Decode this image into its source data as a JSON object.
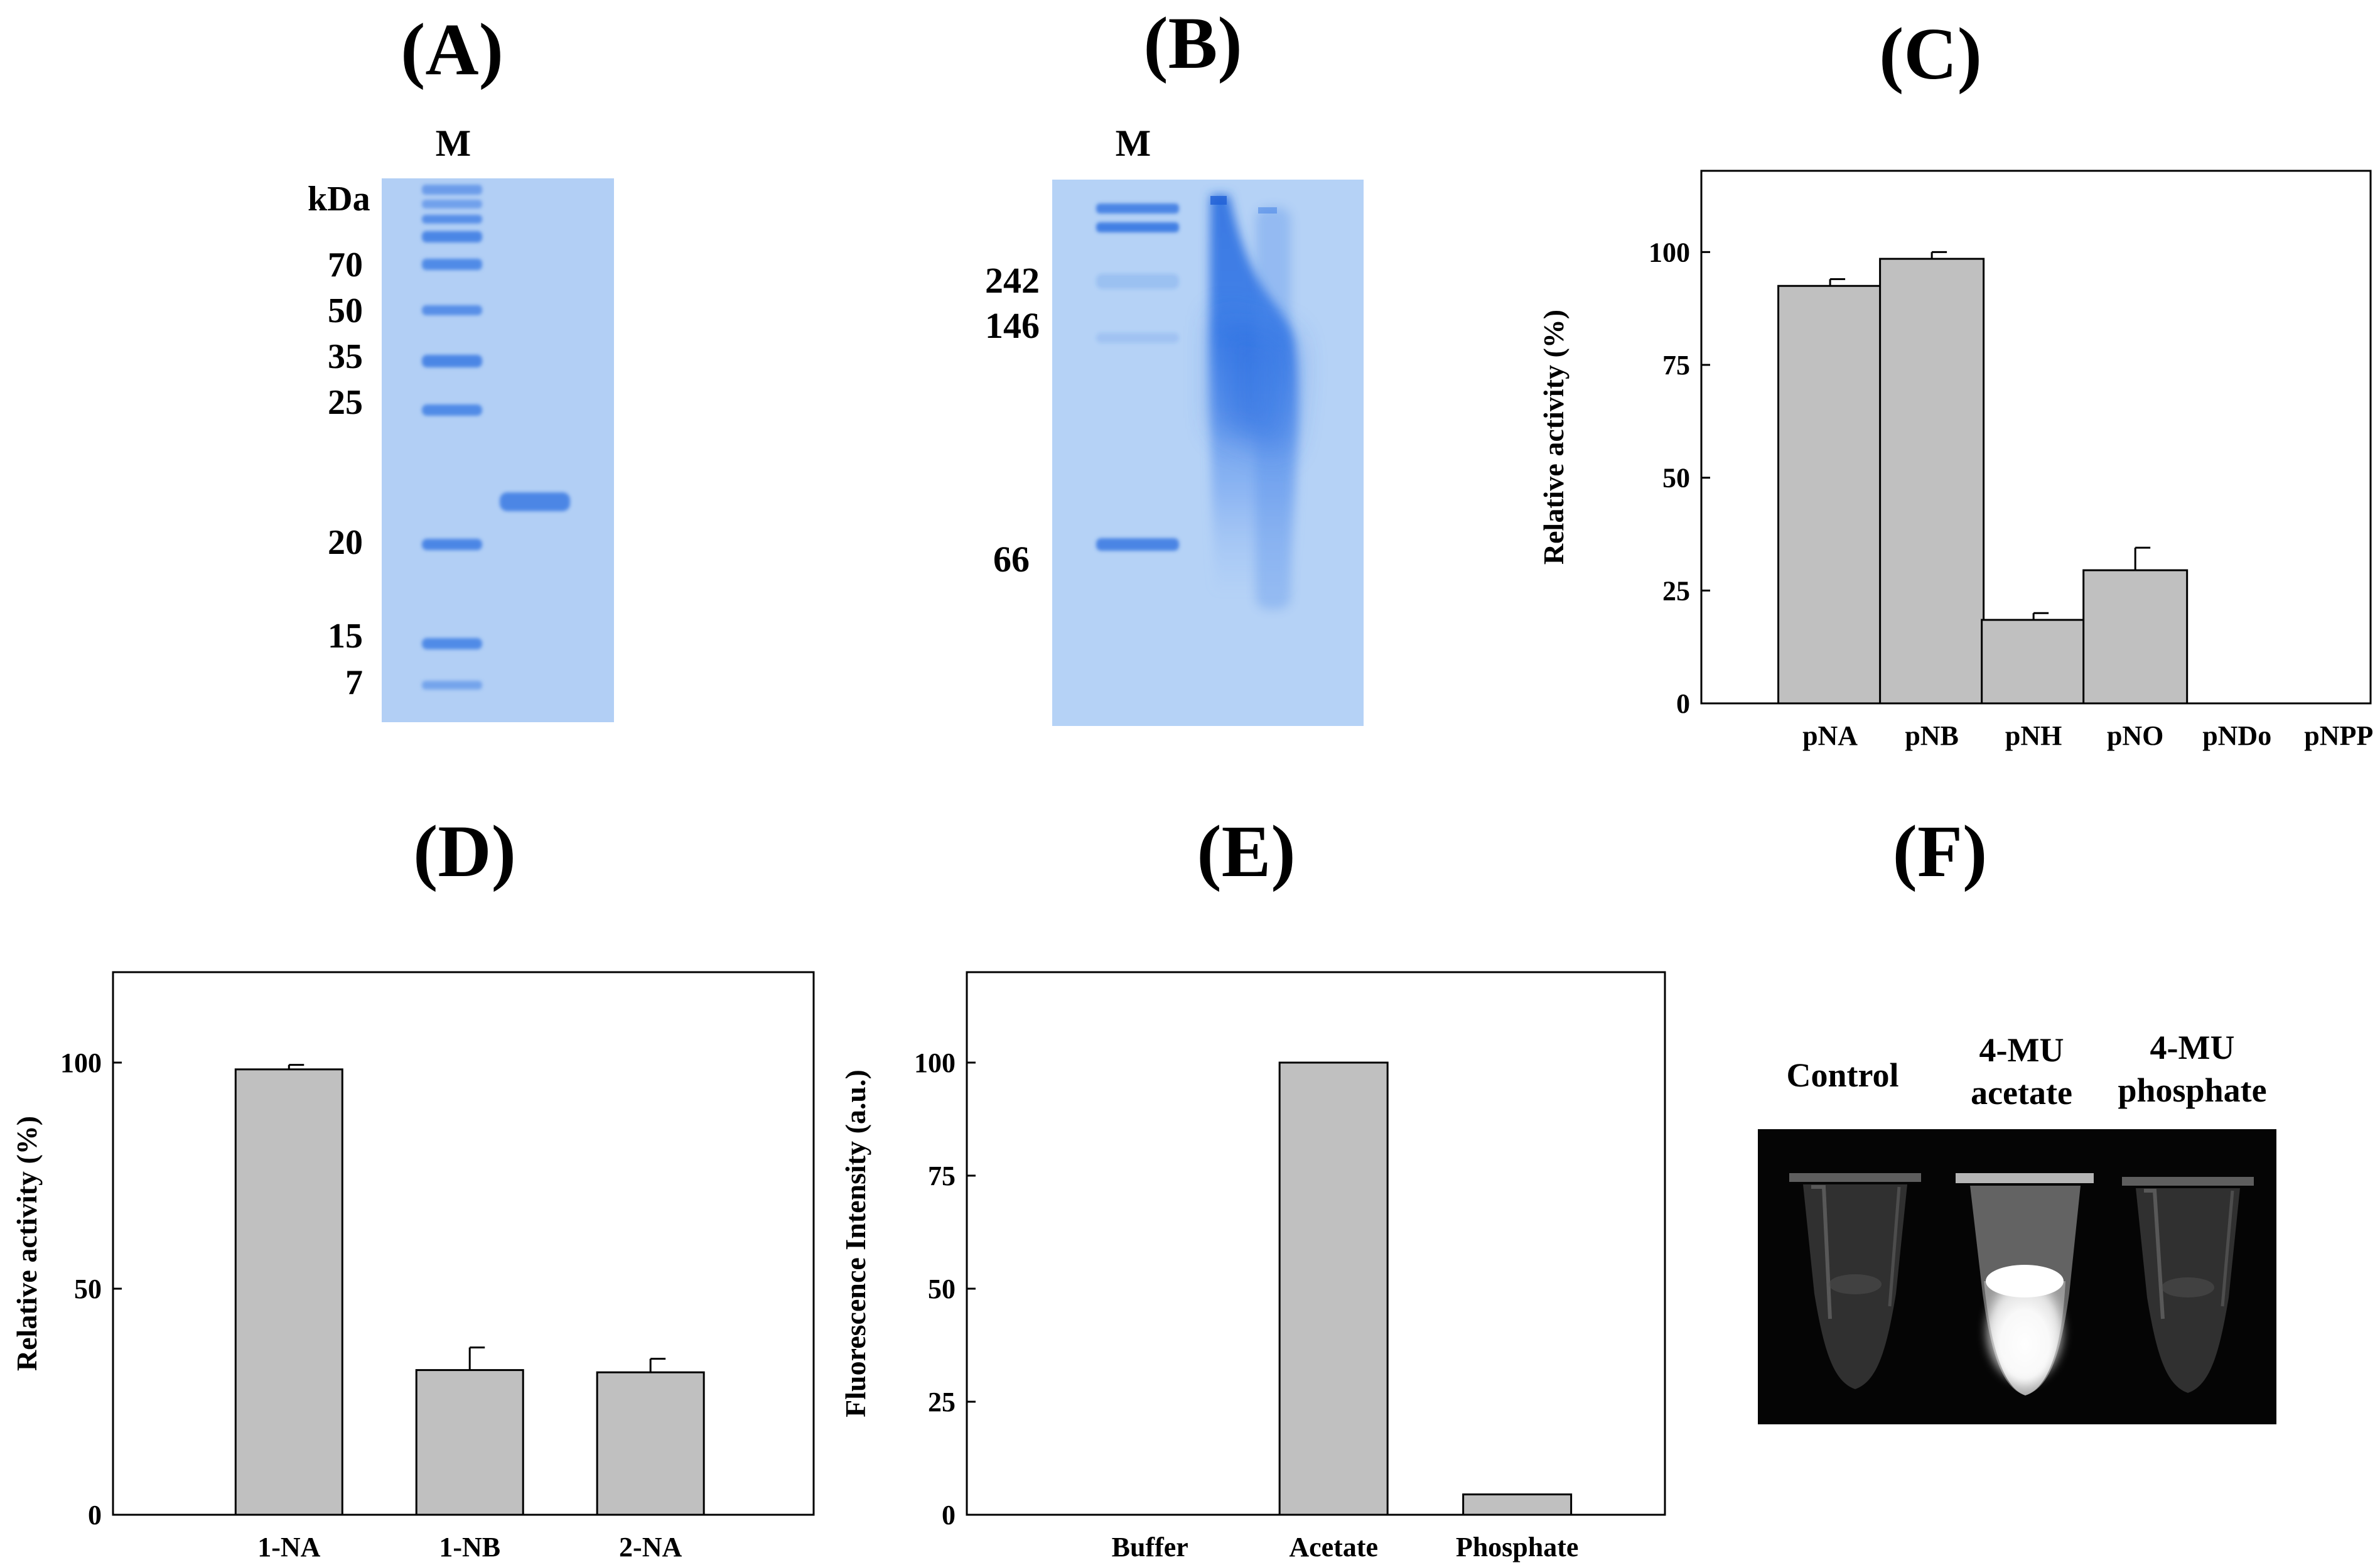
{
  "figure": {
    "panel_labels": [
      "(A)",
      "(B)",
      "(C)",
      "(D)",
      "(E)",
      "(F)"
    ]
  },
  "gel_a": {
    "lane_label": "M",
    "unit_label": "kDa",
    "marker_labels": [
      "70",
      "50",
      "35",
      "25",
      "20",
      "15",
      "7"
    ]
  },
  "gel_b": {
    "lane_label": "M",
    "marker_labels": [
      "242",
      "146",
      "66"
    ]
  },
  "tubes": {
    "labels": [
      {
        "line1": "Control",
        "line2": ""
      },
      {
        "line1": "4-MU",
        "line2": "acetate"
      },
      {
        "line1": "4-MU",
        "line2": "phosphate"
      }
    ]
  },
  "chart_data": [
    {
      "panel": "C",
      "type": "bar",
      "categories": [
        "pNA",
        "pNB",
        "pNH",
        "pNO",
        "pNDo",
        "pNPP"
      ],
      "values": [
        92.5,
        98.5,
        18.5,
        29.5,
        0,
        0
      ],
      "errors": [
        1.5,
        1.5,
        1.5,
        5,
        0,
        0
      ],
      "ylabel": "Relative activity (%)",
      "yticks": [
        0,
        25,
        50,
        75,
        100
      ],
      "ylim": [
        0,
        118
      ],
      "bar_color": "#c0c0c0"
    },
    {
      "panel": "D",
      "type": "bar",
      "categories": [
        "1-NA",
        "1-NB",
        "2-NA"
      ],
      "values": [
        98.5,
        32,
        31.5
      ],
      "errors": [
        1,
        5,
        3
      ],
      "ylabel": "Relative activity (%)",
      "yticks": [
        0,
        50,
        100
      ],
      "ylim": [
        0,
        120
      ],
      "bar_color": "#c0c0c0"
    },
    {
      "panel": "E",
      "type": "bar",
      "categories": [
        "Buffer",
        "Acetate",
        "Phosphate"
      ],
      "values": [
        0,
        100,
        4.5
      ],
      "errors": [
        0,
        0,
        0
      ],
      "ylabel": "Fluorescence Intensity (a.u.)",
      "yticks": [
        0,
        25,
        50,
        75,
        100
      ],
      "ylim": [
        0,
        120
      ],
      "bar_color": "#c0c0c0"
    }
  ]
}
